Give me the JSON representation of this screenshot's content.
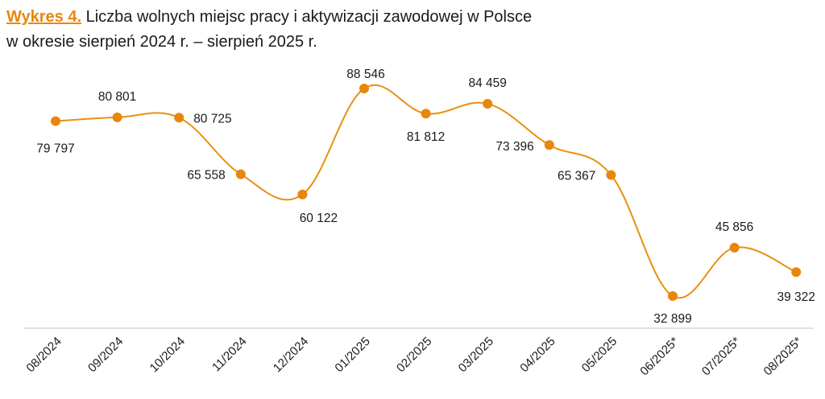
{
  "title": {
    "label": "Wykres 4.",
    "line1": " Liczba wolnych miejsc pracy i aktywizacji zawodowej w Polsce",
    "line2": "w okresie sierpień 2024 r. – sierpień 2025 r."
  },
  "colors": {
    "accent": "#e8860c",
    "line": "#e8900f",
    "axis": "#d9d9d9"
  },
  "chart_data": {
    "type": "line",
    "title": "Liczba wolnych miejsc pracy i aktywizacji zawodowej w Polsce w okresie sierpień 2024 r. – sierpień 2025 r.",
    "categories": [
      "08/2024",
      "09/2024",
      "10/2024",
      "11/2024",
      "12/2024",
      "01/2025",
      "02/2025",
      "03/2025",
      "04/2025",
      "05/2025",
      "06/2025*",
      "07/2025*",
      "08/2025*"
    ],
    "values": [
      79797,
      80801,
      80725,
      65558,
      60122,
      88546,
      81812,
      84459,
      73396,
      65367,
      32899,
      45856,
      39322
    ],
    "value_labels": [
      "79 797",
      "80 801",
      "80 725",
      "65 558",
      "60 122",
      "88 546",
      "81 812",
      "84 459",
      "73 396",
      "65 367",
      "32 899",
      "45 856",
      "39 322"
    ],
    "grid": false,
    "smooth": true
  }
}
